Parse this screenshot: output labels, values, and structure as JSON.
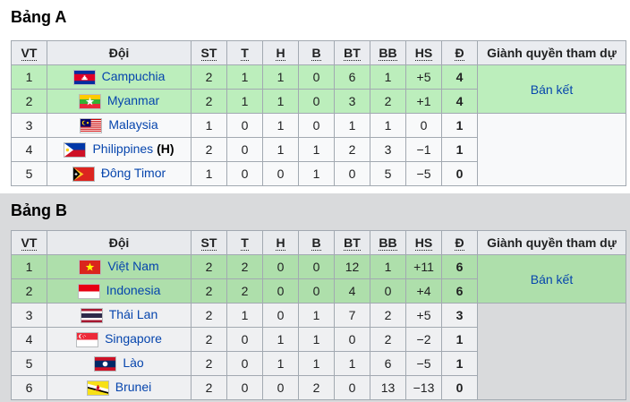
{
  "theme": {
    "page_bg_top": "#ffffff",
    "page_bg_bottom": "#d9dadc",
    "table_border": "#a2a9b1",
    "link_color": "#0645ad"
  },
  "columns": [
    {
      "label": "VT",
      "abbr": true
    },
    {
      "label": "Đội",
      "abbr": false
    },
    {
      "label": "ST",
      "abbr": true
    },
    {
      "label": "T",
      "abbr": true
    },
    {
      "label": "H",
      "abbr": true
    },
    {
      "label": "B",
      "abbr": true
    },
    {
      "label": "BT",
      "abbr": true
    },
    {
      "label": "BB",
      "abbr": true
    },
    {
      "label": "HS",
      "abbr": true
    },
    {
      "label": "Đ",
      "abbr": true
    },
    {
      "label": "Giành quyền tham dự",
      "abbr": false
    }
  ],
  "groups": [
    {
      "id": "a",
      "title": "Bảng A",
      "colors": {
        "header_bg": "#eaecf0",
        "cell_bg": "#f8f9fa",
        "highlight_bg": "#bceebc",
        "empty_cell_bg": "#f8f9fa"
      },
      "qualification": {
        "label": "Bán kết",
        "rowspan": 2
      },
      "rows": [
        {
          "pos": "1",
          "team": "Campuchia",
          "flag": "cambodia",
          "highlight": true,
          "stats": [
            "2",
            "1",
            "1",
            "0",
            "6",
            "1",
            "+5",
            "4"
          ]
        },
        {
          "pos": "2",
          "team": "Myanmar",
          "flag": "myanmar",
          "highlight": true,
          "stats": [
            "2",
            "1",
            "1",
            "0",
            "3",
            "2",
            "+1",
            "4"
          ]
        },
        {
          "pos": "3",
          "team": "Malaysia",
          "flag": "malaysia",
          "highlight": false,
          "stats": [
            "1",
            "0",
            "1",
            "0",
            "1",
            "1",
            "0",
            "1"
          ]
        },
        {
          "pos": "4",
          "team": "Philippines",
          "suffix": "(H)",
          "flag": "philippines",
          "highlight": false,
          "stats": [
            "2",
            "0",
            "1",
            "1",
            "2",
            "3",
            "−1",
            "1"
          ]
        },
        {
          "pos": "5",
          "team": "Đông Timor",
          "flag": "east_timor",
          "highlight": false,
          "stats": [
            "1",
            "0",
            "0",
            "1",
            "0",
            "5",
            "−5",
            "0"
          ]
        }
      ]
    },
    {
      "id": "b",
      "title": "Bảng B",
      "colors": {
        "header_bg": "#e8eaed",
        "cell_bg": "#eff0f2",
        "highlight_bg": "#aedfab",
        "empty_cell_bg": "#d9dadc"
      },
      "qualification": {
        "label": "Bán kết",
        "rowspan": 2
      },
      "rows": [
        {
          "pos": "1",
          "team": "Việt Nam",
          "flag": "vietnam",
          "highlight": true,
          "stats": [
            "2",
            "2",
            "0",
            "0",
            "12",
            "1",
            "+11",
            "6"
          ]
        },
        {
          "pos": "2",
          "team": "Indonesia",
          "flag": "indonesia",
          "highlight": true,
          "stats": [
            "2",
            "2",
            "0",
            "0",
            "4",
            "0",
            "+4",
            "6"
          ]
        },
        {
          "pos": "3",
          "team": "Thái Lan",
          "flag": "thailand",
          "highlight": false,
          "stats": [
            "2",
            "1",
            "0",
            "1",
            "7",
            "2",
            "+5",
            "3"
          ]
        },
        {
          "pos": "4",
          "team": "Singapore",
          "flag": "singapore",
          "highlight": false,
          "stats": [
            "2",
            "0",
            "1",
            "1",
            "0",
            "2",
            "−2",
            "1"
          ]
        },
        {
          "pos": "5",
          "team": "Lào",
          "flag": "laos",
          "highlight": false,
          "stats": [
            "2",
            "0",
            "1",
            "1",
            "1",
            "6",
            "−5",
            "1"
          ]
        },
        {
          "pos": "6",
          "team": "Brunei",
          "flag": "brunei",
          "highlight": false,
          "stats": [
            "2",
            "0",
            "0",
            "2",
            "0",
            "13",
            "−13",
            "0"
          ]
        }
      ]
    }
  ]
}
